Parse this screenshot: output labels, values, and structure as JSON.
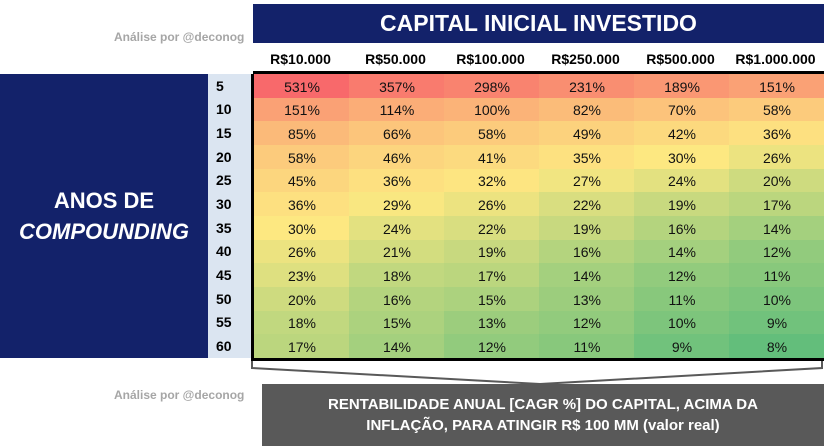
{
  "credit": "Análise por @deconog",
  "chart_data": {
    "type": "heatmap",
    "title": "CAPITAL INICIAL INVESTIDO",
    "row_axis_label": [
      "ANOS DE",
      "COMPOUNDING"
    ],
    "columns": [
      "R$10.000",
      "R$50.000",
      "R$100.000",
      "R$250.000",
      "R$500.000",
      "R$1.000.000"
    ],
    "rows": [
      "5",
      "10",
      "15",
      "20",
      "25",
      "30",
      "35",
      "40",
      "45",
      "50",
      "55",
      "60"
    ],
    "values": [
      [
        531,
        357,
        298,
        231,
        189,
        151
      ],
      [
        151,
        114,
        100,
        82,
        70,
        58
      ],
      [
        85,
        66,
        58,
        49,
        42,
        36
      ],
      [
        58,
        46,
        41,
        35,
        30,
        26
      ],
      [
        45,
        36,
        32,
        27,
        24,
        20
      ],
      [
        36,
        29,
        26,
        22,
        19,
        17
      ],
      [
        30,
        24,
        22,
        19,
        16,
        14
      ],
      [
        26,
        21,
        19,
        16,
        14,
        12
      ],
      [
        23,
        18,
        17,
        14,
        12,
        11
      ],
      [
        20,
        16,
        15,
        13,
        11,
        10
      ],
      [
        18,
        15,
        13,
        12,
        10,
        9
      ],
      [
        17,
        14,
        12,
        11,
        9,
        8
      ]
    ],
    "value_suffix": "%",
    "color_scale": {
      "low": "#63be7b",
      "mid": "#fde881",
      "high": "#f8696b"
    },
    "caption": [
      "RENTABILIDADE ANUAL [CAGR %] DO CAPITAL, ACIMA DA",
      "INFLAÇÃO, PARA ATINGIR R$ 100 MM (valor real)"
    ]
  },
  "colors": {
    "navy": "#13226a",
    "caption_bg": "#595959",
    "row_label_bg": "#dbe5f1",
    "credit_text": "#a6a6a6"
  }
}
